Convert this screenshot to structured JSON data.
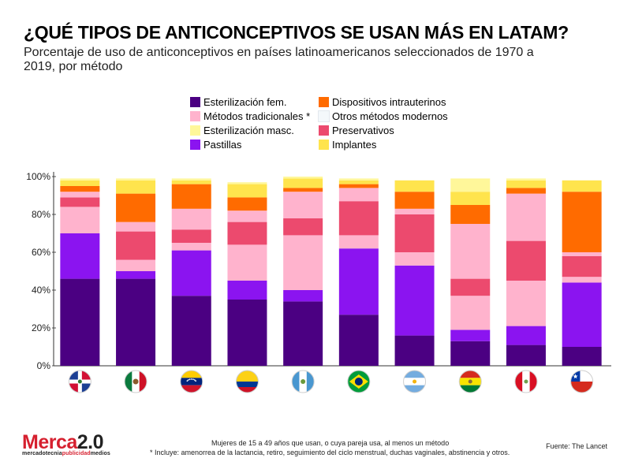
{
  "header": {
    "title": "¿QUÉ TIPOS DE ANTICONCEPTIVOS SE USAN MÁS EN LATAM?",
    "subtitle": "Porcentaje de uso de anticonceptivos en países latinoamericanos seleccionados de 1970 a 2019, por método"
  },
  "legend": [
    {
      "label": "Esterilización fem.",
      "color": "#4b0082"
    },
    {
      "label": "Dispositivos intrauterinos",
      "color": "#ff6b00"
    },
    {
      "label": "Métodos tradicionales *",
      "color": "#ffb3cd"
    },
    {
      "label": "Otros métodos modernos",
      "color": "#f4f8fb"
    },
    {
      "label": "Esterilización masc.",
      "color": "#fff79a"
    },
    {
      "label": "Preservativos",
      "color": "#ec4a6e"
    },
    {
      "label": "Pastillas",
      "color": "#8b14f0"
    },
    {
      "label": "Implantes",
      "color": "#ffe44d"
    }
  ],
  "chart_data": {
    "type": "bar",
    "stacked": true,
    "categories": [
      "República Dominicana",
      "México",
      "Venezuela",
      "Colombia",
      "Guatemala",
      "Brasil",
      "Argentina",
      "Bolivia",
      "Perú",
      "Chile"
    ],
    "y_ticks": [
      "0%",
      "20%",
      "40%",
      "60%",
      "80%",
      "100%"
    ],
    "ylim": [
      0,
      100
    ],
    "series": [
      {
        "name": "Esterilización fem.",
        "color": "#4b0082",
        "values": [
          46,
          46,
          37,
          35,
          34,
          27,
          16,
          13,
          11,
          10
        ]
      },
      {
        "name": "Esterilización masc.",
        "color": "#fff79a",
        "values": [
          0,
          0,
          0,
          0,
          0,
          0,
          0,
          0,
          0,
          0
        ]
      },
      {
        "name": "Pastillas",
        "color": "#8b14f0",
        "values": [
          24,
          4,
          24,
          10,
          6,
          35,
          37,
          6,
          10,
          34
        ]
      },
      {
        "name": "Otros métodos modernos",
        "color": "#f4f8fb",
        "values": [
          0,
          0,
          0,
          0,
          0,
          0,
          0,
          0,
          0,
          0
        ]
      },
      {
        "name": "Métodos tradicionales *",
        "color": "#ffb3cd",
        "values": [
          14,
          6,
          4,
          19,
          29,
          7,
          7,
          18,
          24,
          3
        ]
      },
      {
        "name": "Preservativos",
        "color": "#ec4a6e",
        "values": [
          5,
          15,
          7,
          12,
          9,
          18,
          20,
          9,
          21,
          11
        ]
      },
      {
        "name": "Métodos tradicionales *",
        "color": "#ffb3cd",
        "values": [
          3,
          5,
          11,
          6,
          14,
          7,
          3,
          29,
          25,
          2
        ]
      },
      {
        "name": "Dispositivos intrauterinos",
        "color": "#ff6b00",
        "values": [
          3,
          15,
          13,
          7,
          2,
          2,
          9,
          10,
          3,
          32
        ]
      },
      {
        "name": "Implantes",
        "color": "#ffe44d",
        "values": [
          3,
          7,
          2,
          7,
          5,
          2,
          6,
          7,
          4,
          6
        ]
      },
      {
        "name": "Esterilización masc.",
        "color": "#fff79a",
        "values": [
          1,
          1,
          1,
          1,
          1,
          1,
          0,
          7,
          1,
          0
        ]
      }
    ],
    "flags": [
      "dom",
      "mex",
      "ven",
      "col",
      "gtm",
      "bra",
      "arg",
      "bol",
      "per",
      "chl"
    ]
  },
  "footnote": {
    "line1": "Mujeres de 15 a 49 años que usan, o cuya pareja usa, al menos un método",
    "line2": "* Incluye: amenorrea de la lactancia, retiro, seguimiento del ciclo menstrual, duchas vaginales, abstinencia y otros."
  },
  "source": "Fuente: The Lancet",
  "brand": {
    "name": "Merca",
    "num": "2.0",
    "tagline_a": "mercadotecnia",
    "tagline_b": "publicidad",
    "tagline_c": "medios"
  }
}
